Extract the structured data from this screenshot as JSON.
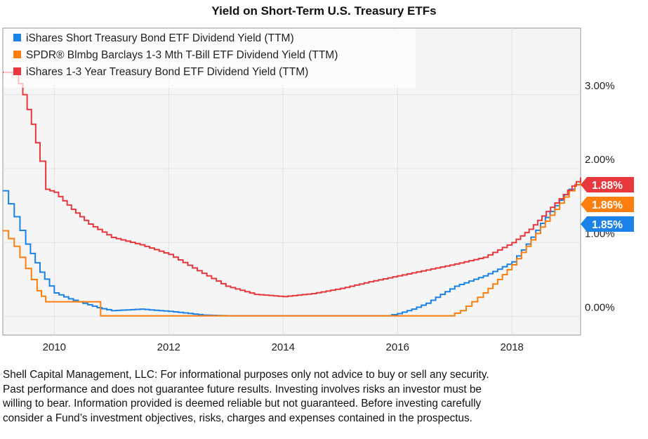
{
  "chart_data": {
    "type": "line",
    "title": "Yield on Short-Term U.S. Treasury ETFs",
    "xlim": [
      2009.1,
      2019.2
    ],
    "ylim": [
      -0.25,
      3.9
    ],
    "x_ticks": [
      2010,
      2012,
      2014,
      2016,
      2018
    ],
    "x_tick_labels": [
      "2010",
      "2012",
      "2014",
      "2016",
      "2018"
    ],
    "y_ticks": [
      0,
      1,
      2,
      3
    ],
    "y_tick_labels": [
      "0.00%",
      "1.00%",
      "2.00%",
      "3.00%"
    ],
    "y_axis_side": "right",
    "grid": true,
    "legend_position": "top-left",
    "series": [
      {
        "name": "iShares Short Treasury Bond ETF Dividend Yield (TTM)",
        "color": "#1a82e8",
        "end_label": "1.85%",
        "x": [
          2009.1,
          2009.3,
          2009.5,
          2009.75,
          2010.0,
          2010.25,
          2010.5,
          2010.75,
          2011.0,
          2011.5,
          2012.0,
          2012.6,
          2013.0,
          2014.0,
          2015.0,
          2015.8,
          2016.0,
          2016.25,
          2016.5,
          2016.75,
          2017.0,
          2017.25,
          2017.5,
          2017.75,
          2018.0,
          2018.25,
          2018.5,
          2018.75,
          2019.0,
          2019.2
        ],
        "y": [
          1.7,
          1.35,
          0.98,
          0.6,
          0.32,
          0.24,
          0.18,
          0.12,
          0.08,
          0.1,
          0.07,
          0.02,
          0.01,
          0.01,
          0.01,
          0.01,
          0.04,
          0.1,
          0.18,
          0.3,
          0.41,
          0.48,
          0.55,
          0.64,
          0.74,
          0.98,
          1.26,
          1.5,
          1.72,
          1.85
        ]
      },
      {
        "name": "SPDR® Blmbg Barclays 1-3 Mth T-Bill ETF Dividend Yield (TTM)",
        "color": "#ff7f0e",
        "end_label": "1.86%",
        "x": [
          2009.1,
          2009.3,
          2009.5,
          2009.7,
          2009.85,
          2010.8,
          2010.81,
          2016.9,
          2017.1,
          2017.3,
          2017.5,
          2017.75,
          2018.0,
          2018.25,
          2018.5,
          2018.75,
          2019.0,
          2019.2
        ],
        "y": [
          1.16,
          0.95,
          0.65,
          0.35,
          0.2,
          0.2,
          0.01,
          0.01,
          0.08,
          0.2,
          0.32,
          0.5,
          0.7,
          0.95,
          1.21,
          1.45,
          1.7,
          1.86
        ]
      },
      {
        "name": "iShares 1-3 Year Treasury Bond ETF Dividend Yield (TTM)",
        "color": "#e8383d",
        "end_label": "1.88%",
        "x": [
          2009.1,
          2009.3,
          2009.45,
          2009.6,
          2009.75,
          2009.85,
          2010.0,
          2010.3,
          2010.6,
          2011.0,
          2011.5,
          2012.0,
          2012.5,
          2013.0,
          2013.5,
          2014.0,
          2014.5,
          2015.0,
          2015.5,
          2016.0,
          2016.5,
          2017.0,
          2017.5,
          2018.0,
          2018.3,
          2018.6,
          2018.9,
          2019.2
        ],
        "y": [
          3.3,
          3.3,
          3.0,
          2.6,
          2.1,
          1.72,
          1.68,
          1.45,
          1.25,
          1.07,
          0.97,
          0.84,
          0.62,
          0.41,
          0.3,
          0.27,
          0.31,
          0.38,
          0.47,
          0.55,
          0.63,
          0.71,
          0.8,
          1.0,
          1.18,
          1.42,
          1.65,
          1.88
        ]
      }
    ]
  },
  "footer": {
    "lines": [
      "Shell Capital Management, LLC: For informational purposes only not advice to buy or sell any security.",
      "Past performance and does not guarantee future results. Investing involves risks an investor must be",
      "willing to bear. Information provided is deemed reliable but not guaranteed. Before investing carefully",
      "consider a Fund’s investment objectives, risks, charges and expenses contained in the prospectus."
    ]
  }
}
